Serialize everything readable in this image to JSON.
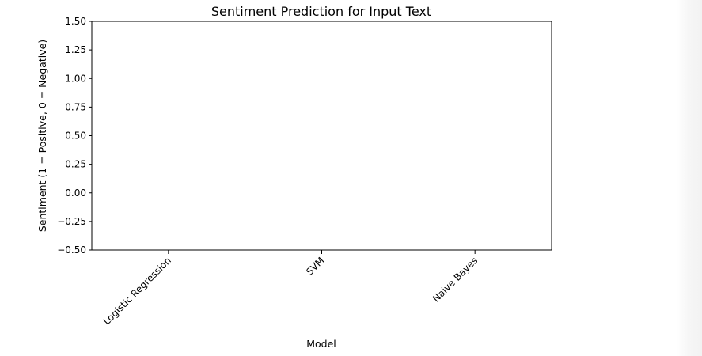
{
  "chart_data": {
    "type": "bar",
    "title": "Sentiment Prediction for Input Text",
    "xlabel": "Model",
    "ylabel": "Sentiment (1 = Positive, 0 = Negative)",
    "categories": [
      "Logistic Regression",
      "SVM",
      "Naive Bayes"
    ],
    "values": [
      null,
      null,
      null
    ],
    "ylim": [
      -0.5,
      1.5
    ],
    "yticks": [
      -0.5,
      -0.25,
      0.0,
      0.25,
      0.5,
      0.75,
      1.0,
      1.25,
      1.5
    ],
    "ytick_labels": [
      "−0.50",
      "−0.25",
      "0.00",
      "0.25",
      "0.50",
      "0.75",
      "1.00",
      "1.25",
      "1.50"
    ],
    "grid": false,
    "legend": "none"
  }
}
